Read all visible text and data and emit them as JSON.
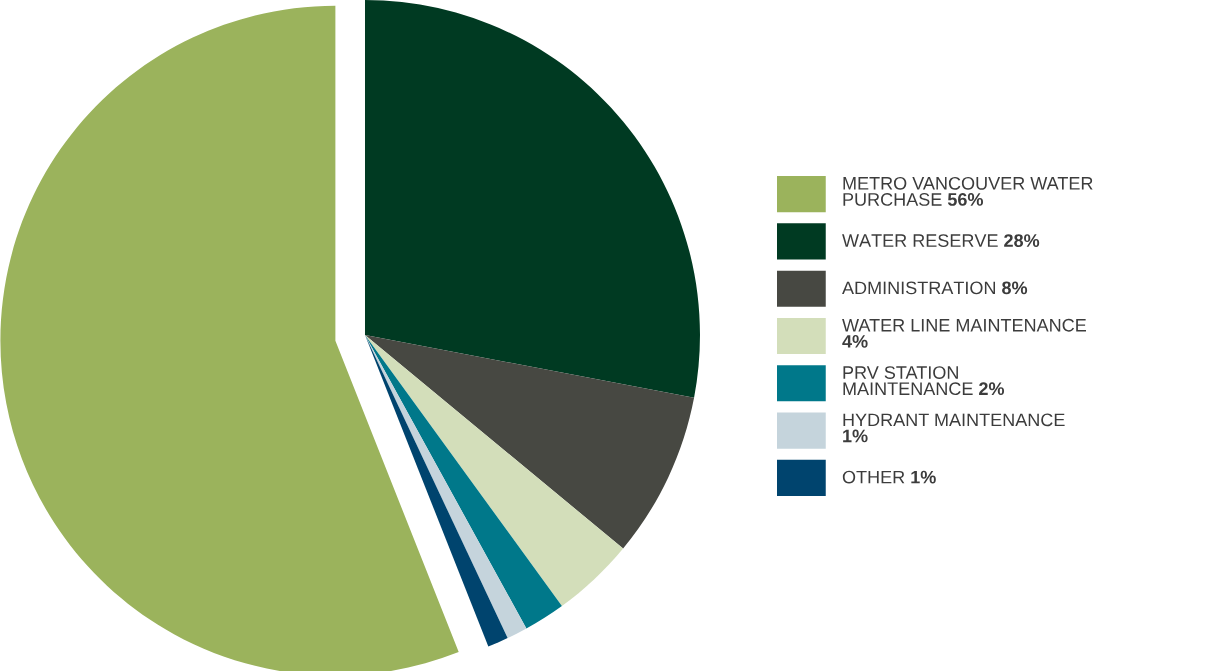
{
  "chart_data": {
    "type": "pie",
    "categories": [
      "METRO VANCOUVER WATER\nPURCHASE",
      "WATER RESERVE",
      "ADMINISTRATION",
      "WATER LINE MAINTENANCE",
      "PRV STATION\nMAINTENANCE",
      "HYDRANT MAINTENANCE",
      "OTHER"
    ],
    "values": [
      56,
      28,
      8,
      4,
      2,
      1,
      1
    ],
    "value_labels": [
      "56%",
      "28%",
      "8%",
      "4%",
      "2%",
      "1%",
      "1%"
    ],
    "colors": [
      "#9bb35c",
      "#003a22",
      "#474842",
      "#d3deba",
      "#00788a",
      "#c5d4dc",
      "#00446e"
    ],
    "legend": "right"
  }
}
